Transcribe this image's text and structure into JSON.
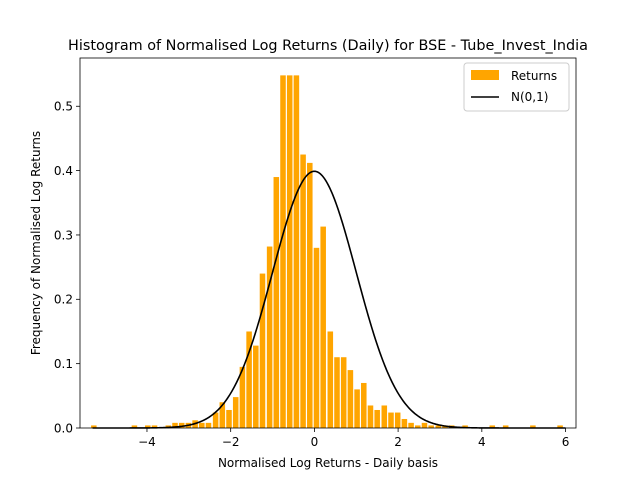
{
  "chart_data": {
    "type": "bar",
    "title": "Histogram of Normalised Log Returns (Daily) for BSE - Tube_Invest_India",
    "xlabel": "Normalised Log Returns - Daily basis",
    "ylabel": "Frequency of Normalised Log Returns",
    "xlim": [
      -5.6,
      6.25
    ],
    "ylim": [
      0,
      0.575
    ],
    "xticks": [
      -4,
      -2,
      0,
      2,
      4,
      6
    ],
    "yticks": [
      0.0,
      0.1,
      0.2,
      0.3,
      0.4,
      0.5
    ],
    "bin_width": 0.1611,
    "grid": false,
    "legend_position": "top-right",
    "colors": {
      "bars": "#FFA500",
      "curve": "#000000"
    },
    "series": [
      {
        "name": "Returns",
        "type": "histogram",
        "bin_centers": [
          -5.27,
          -4.3,
          -3.98,
          -3.82,
          -3.49,
          -3.33,
          -3.17,
          -3.01,
          -2.85,
          -2.69,
          -2.53,
          -2.36,
          -2.2,
          -2.04,
          -1.88,
          -1.72,
          -1.56,
          -1.4,
          -1.24,
          -1.07,
          -0.91,
          -0.75,
          -0.59,
          -0.43,
          -0.27,
          -0.11,
          0.05,
          0.21,
          0.38,
          0.54,
          0.7,
          0.86,
          1.02,
          1.18,
          1.34,
          1.5,
          1.67,
          1.83,
          1.99,
          2.15,
          2.31,
          2.47,
          2.63,
          2.79,
          2.96,
          3.12,
          3.28,
          3.6,
          4.25,
          4.57,
          5.22,
          5.87
        ],
        "values": [
          0.004,
          0.004,
          0.004,
          0.004,
          0.004,
          0.008,
          0.008,
          0.008,
          0.012,
          0.008,
          0.008,
          0.024,
          0.04,
          0.028,
          0.048,
          0.095,
          0.15,
          0.128,
          0.24,
          0.282,
          0.39,
          0.548,
          0.548,
          0.548,
          0.425,
          0.412,
          0.28,
          0.313,
          0.15,
          0.11,
          0.11,
          0.09,
          0.06,
          0.07,
          0.035,
          0.028,
          0.035,
          0.024,
          0.024,
          0.014,
          0.008,
          0.004,
          0.008,
          0.004,
          0.004,
          0.004,
          0.004,
          0.004,
          0.004,
          0.004,
          0.004,
          0.004
        ]
      },
      {
        "name": "N(0,1)",
        "type": "line",
        "function": "normal_pdf",
        "mean": 0,
        "std": 1,
        "x_range": [
          -5.3,
          6.0
        ]
      }
    ]
  }
}
